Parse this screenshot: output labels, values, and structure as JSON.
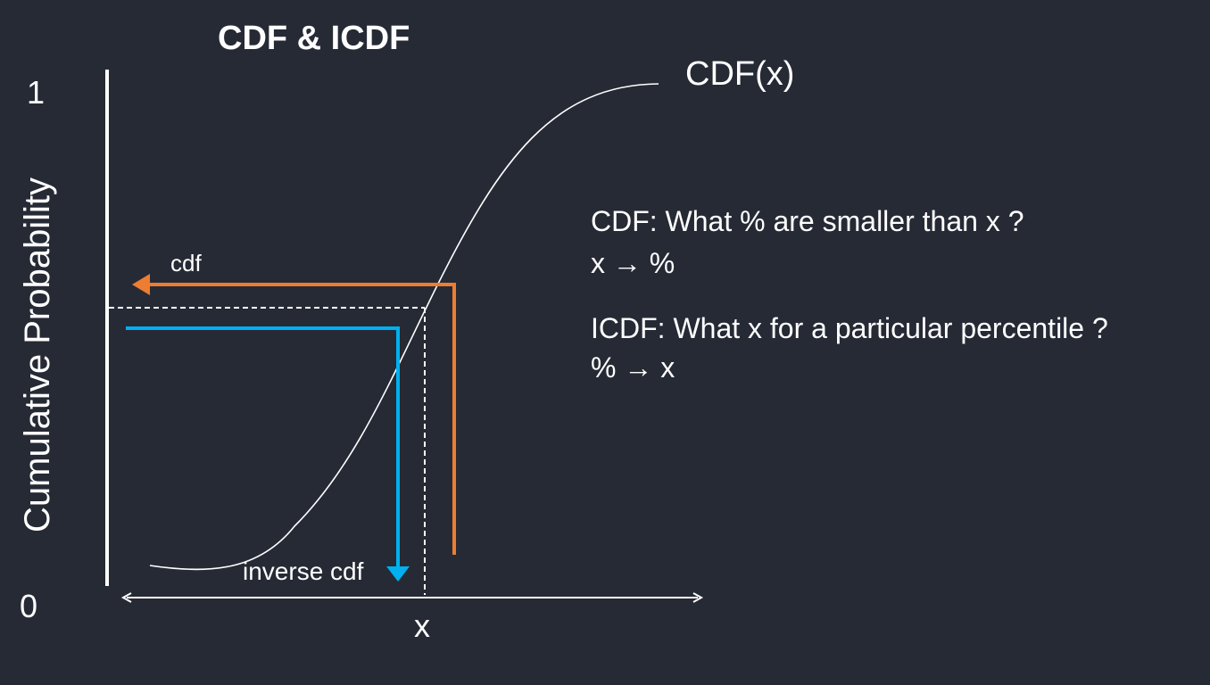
{
  "title": "CDF & ICDF",
  "axis": {
    "y_label": "Cumulative Probability",
    "y_top": "1",
    "y_bottom": "0",
    "x_label": "x"
  },
  "curve": {
    "label": "CDF(x)"
  },
  "arrows": {
    "cdf_label": "cdf",
    "inverse_label": "inverse cdf"
  },
  "notes": {
    "cdf_question": "CDF: What % are smaller than x ?",
    "cdf_mapping": "x → %",
    "icdf_question": "ICDF: What x for a particular percentile ?",
    "icdf_mapping": "% → x"
  },
  "colors": {
    "background": "#262a35",
    "foreground": "#ffffff",
    "cdf_arrow": "#ed7d31",
    "inverse_arrow": "#00b0f0"
  }
}
